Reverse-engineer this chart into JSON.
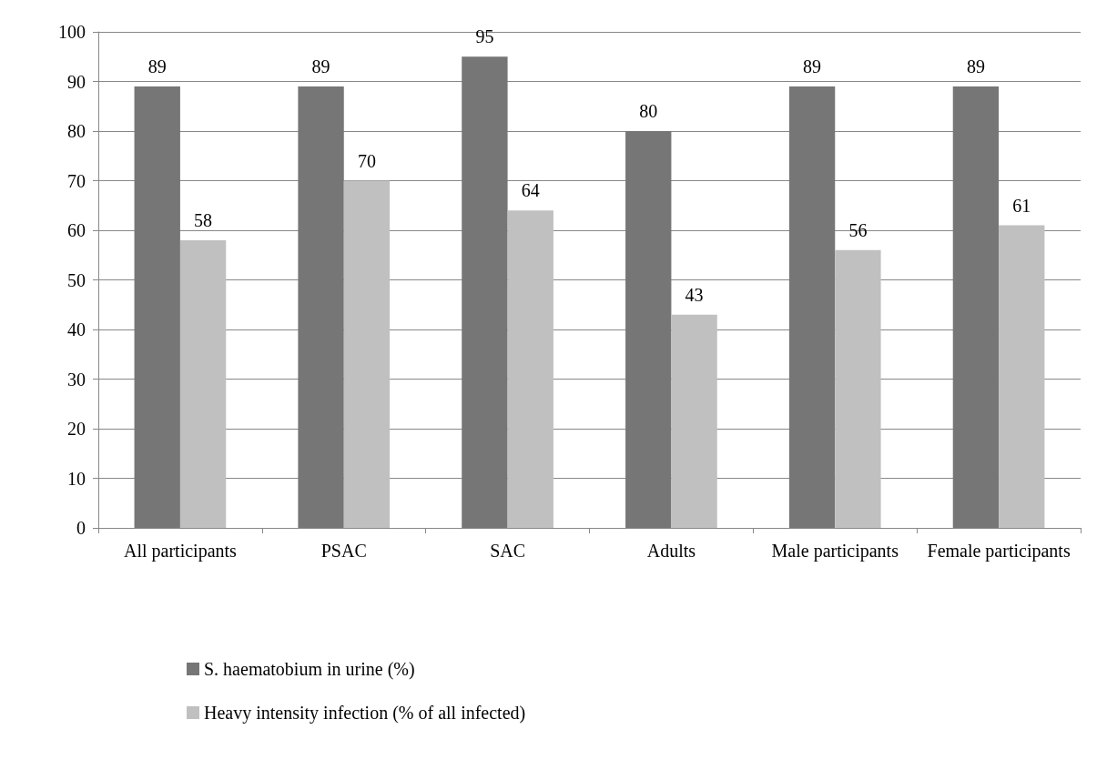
{
  "chart_data": {
    "type": "bar",
    "categories": [
      "All participants",
      "PSAC",
      "SAC",
      "Adults",
      "Male participants",
      "Female participants"
    ],
    "series": [
      {
        "name": "S. haematobium in urine (%)",
        "color": "#767676",
        "values": [
          89,
          89,
          95,
          80,
          89,
          89
        ]
      },
      {
        "name": "Heavy intensity infection (% of all infected)",
        "color": "#c0c0c0",
        "values": [
          58,
          70,
          64,
          43,
          56,
          61
        ]
      }
    ],
    "ylim": [
      0,
      100
    ],
    "yticks": [
      0,
      10,
      20,
      30,
      40,
      50,
      60,
      70,
      80,
      90,
      100
    ],
    "grid": "y",
    "data_labels": true,
    "legend": "bottom left"
  }
}
